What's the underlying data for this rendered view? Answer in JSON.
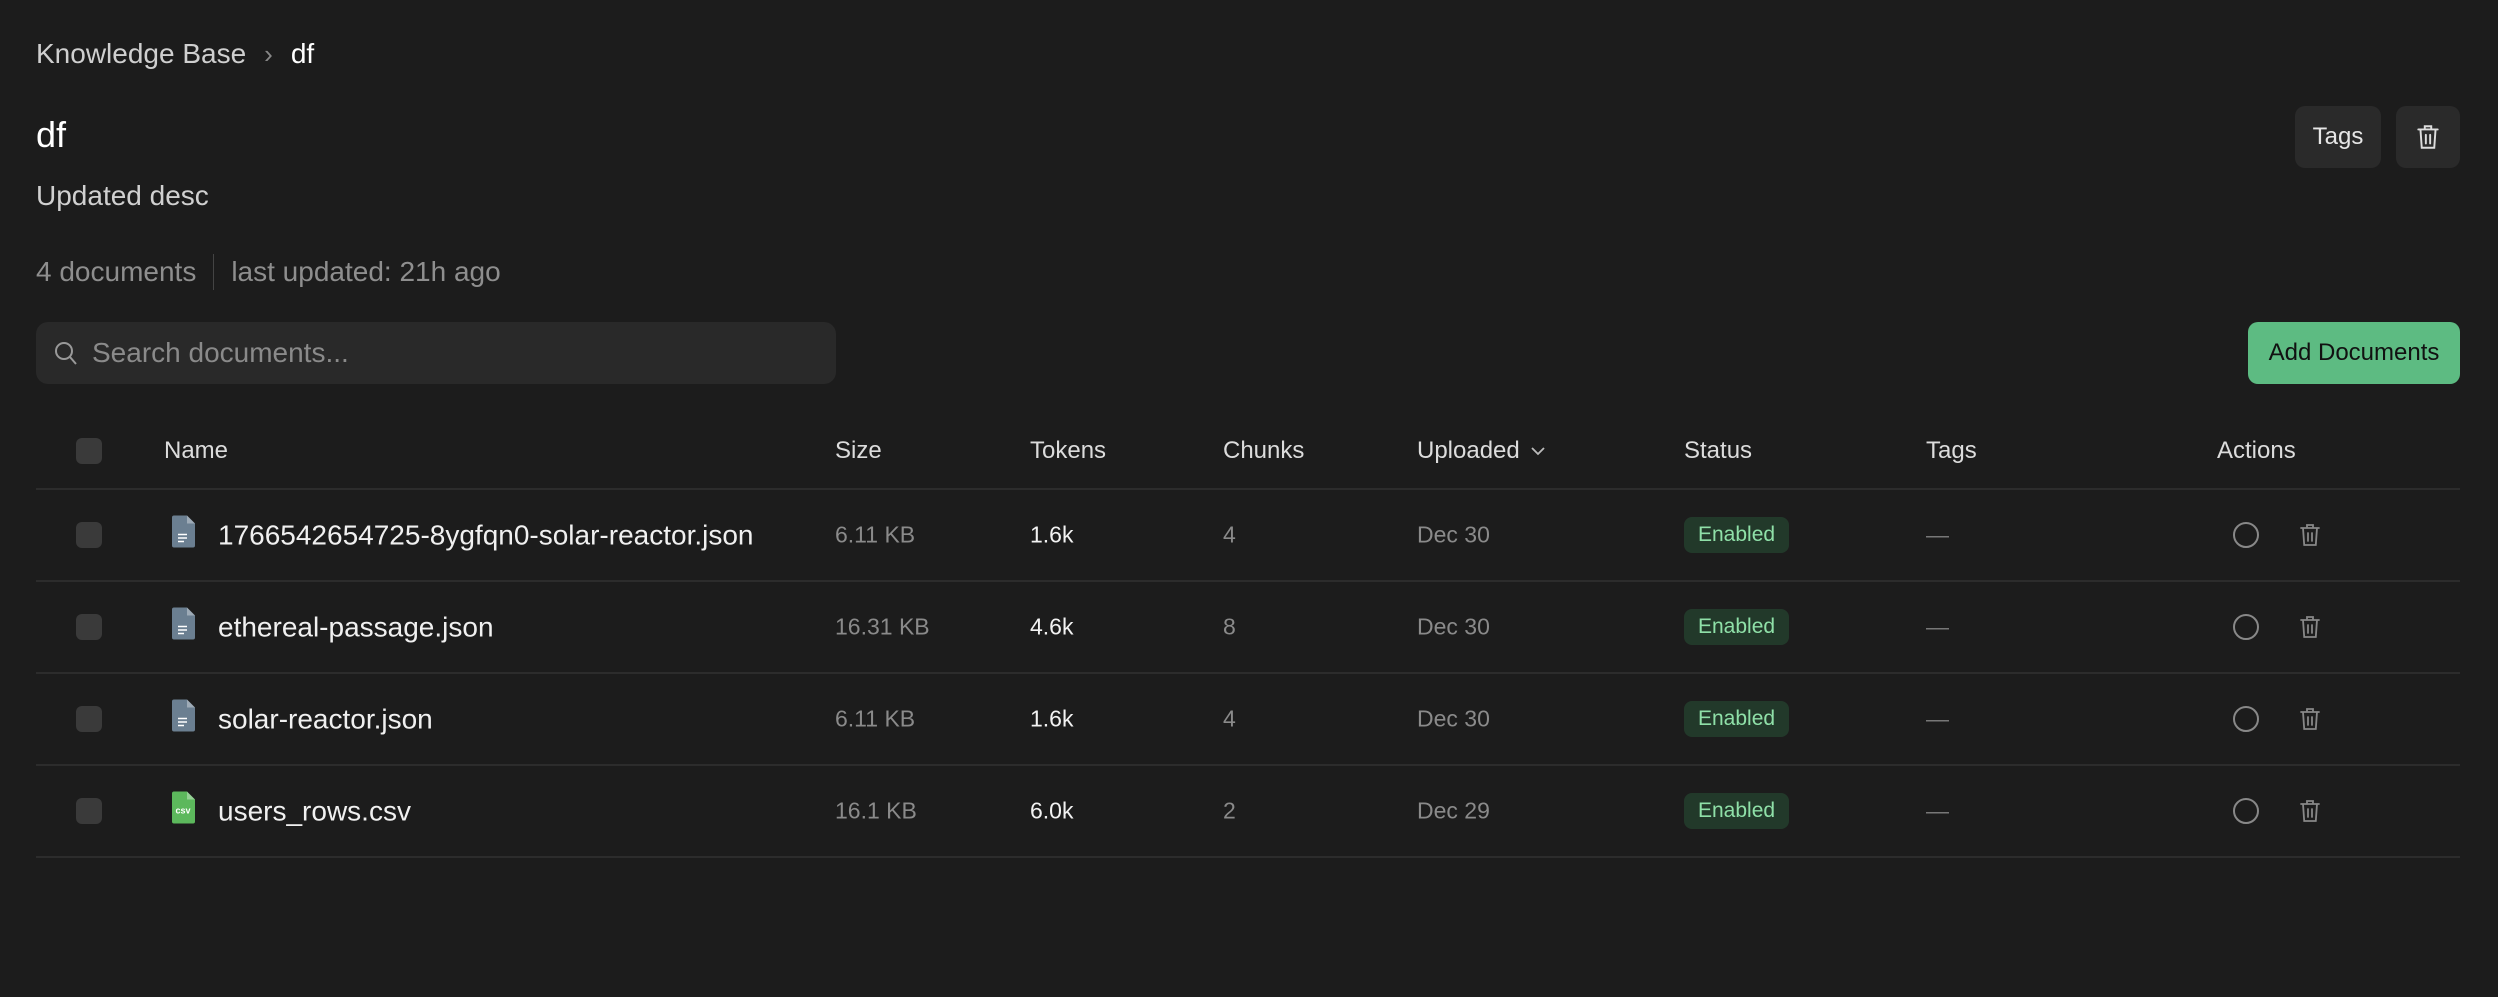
{
  "breadcrumb": {
    "root": "Knowledge Base",
    "separator": "›",
    "current": "df"
  },
  "header": {
    "title": "df",
    "description": "Updated desc",
    "doc_count": "4 documents",
    "last_updated": "last updated: 21h ago",
    "tags_button": "Tags"
  },
  "search": {
    "placeholder": "Search documents..."
  },
  "add_documents_label": "Add Documents",
  "table": {
    "columns": {
      "name": "Name",
      "size": "Size",
      "tokens": "Tokens",
      "chunks": "Chunks",
      "uploaded": "Uploaded",
      "status": "Status",
      "tags": "Tags",
      "actions": "Actions"
    },
    "rows": [
      {
        "name": "1766542654725-8ygfqn0-solar-reactor.json",
        "type": "json",
        "size": "6.11 KB",
        "tokens": "1.6k",
        "chunks": "4",
        "uploaded": "Dec 30",
        "status": "Enabled",
        "tags": "—"
      },
      {
        "name": "ethereal-passage.json",
        "type": "json",
        "size": "16.31 KB",
        "tokens": "4.6k",
        "chunks": "8",
        "uploaded": "Dec 30",
        "status": "Enabled",
        "tags": "—"
      },
      {
        "name": "solar-reactor.json",
        "type": "json",
        "size": "6.11 KB",
        "tokens": "1.6k",
        "chunks": "4",
        "uploaded": "Dec 30",
        "status": "Enabled",
        "tags": "—"
      },
      {
        "name": "users_rows.csv",
        "type": "csv",
        "size": "16.1 KB",
        "tokens": "6.0k",
        "chunks": "2",
        "uploaded": "Dec 29",
        "status": "Enabled",
        "tags": "—"
      }
    ]
  },
  "icons": {
    "csv_label": "csv"
  },
  "colors": {
    "accent": "#5dbb82",
    "badge_bg": "#22392a",
    "badge_text": "#8fe0a8",
    "json_icon": "#6b7f91",
    "csv_icon": "#5cb85c"
  }
}
